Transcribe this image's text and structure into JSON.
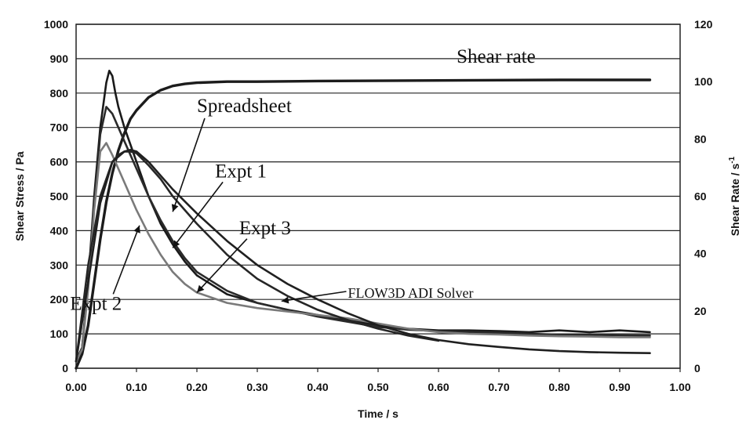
{
  "chart_data": {
    "type": "line",
    "title": "",
    "xlabel": "Time / s",
    "ylabel": "Shear Stress / Pa",
    "y2label": "Shear Rate / s-1",
    "xlim": [
      0,
      1.0
    ],
    "ylim": [
      0,
      1000
    ],
    "y2lim": [
      0,
      120
    ],
    "x_ticks": [
      "0.00",
      "0.10",
      "0.20",
      "0.30",
      "0.40",
      "0.50",
      "0.60",
      "0.70",
      "0.80",
      "0.90",
      "1.00"
    ],
    "y_ticks": [
      "0",
      "100",
      "200",
      "300",
      "400",
      "500",
      "600",
      "700",
      "800",
      "900",
      "1000"
    ],
    "y2_ticks": [
      "0",
      "20",
      "40",
      "60",
      "80",
      "100",
      "120"
    ],
    "grid": true,
    "series": [
      {
        "name": "Shear rate",
        "axis": "right",
        "color": "#1c1c1c",
        "width": 3.4,
        "x": [
          0,
          0.01,
          0.02,
          0.03,
          0.04,
          0.05,
          0.06,
          0.07,
          0.08,
          0.09,
          0.1,
          0.12,
          0.14,
          0.16,
          0.18,
          0.2,
          0.25,
          0.3,
          0.4,
          0.5,
          0.6,
          0.7,
          0.8,
          0.9,
          0.95
        ],
        "y": [
          0,
          5,
          15,
          30,
          45,
          58,
          68,
          76,
          82,
          87,
          90,
          94.5,
          97,
          98.5,
          99.2,
          99.6,
          100,
          100,
          100.2,
          100.3,
          100.4,
          100.5,
          100.6,
          100.6,
          100.6
        ]
      },
      {
        "name": "Expt 2",
        "axis": "left",
        "color": "#1a1a1a",
        "width": 2.6,
        "x": [
          0,
          0.01,
          0.02,
          0.03,
          0.04,
          0.05,
          0.055,
          0.06,
          0.065,
          0.07,
          0.08,
          0.09,
          0.1,
          0.12,
          0.14,
          0.16,
          0.18,
          0.2,
          0.25,
          0.3,
          0.35,
          0.4,
          0.45,
          0.5,
          0.55,
          0.6,
          0.65,
          0.7,
          0.75,
          0.8,
          0.85,
          0.9,
          0.95
        ],
        "y": [
          20,
          60,
          250,
          500,
          700,
          830,
          865,
          850,
          800,
          760,
          700,
          650,
          600,
          500,
          420,
          360,
          310,
          270,
          215,
          190,
          170,
          155,
          140,
          125,
          115,
          110,
          110,
          108,
          105,
          110,
          105,
          110,
          105
        ]
      },
      {
        "name": "Expt 1",
        "axis": "left",
        "color": "#2a2a2a",
        "width": 2.6,
        "x": [
          0,
          0.01,
          0.02,
          0.03,
          0.04,
          0.05,
          0.06,
          0.07,
          0.08,
          0.09,
          0.1,
          0.12,
          0.14,
          0.16,
          0.18,
          0.2,
          0.25,
          0.3,
          0.35,
          0.4,
          0.45,
          0.5,
          0.55,
          0.6,
          0.65,
          0.7,
          0.75,
          0.8,
          0.85,
          0.9,
          0.95
        ],
        "y": [
          20,
          60,
          240,
          480,
          680,
          760,
          740,
          700,
          660,
          620,
          580,
          500,
          430,
          370,
          320,
          280,
          225,
          190,
          170,
          150,
          135,
          120,
          112,
          108,
          105,
          103,
          100,
          98,
          97,
          96,
          95
        ]
      },
      {
        "name": "Expt 3",
        "axis": "left",
        "color": "#7a7a7a",
        "width": 2.6,
        "x": [
          0,
          0.01,
          0.02,
          0.03,
          0.04,
          0.05,
          0.06,
          0.07,
          0.08,
          0.09,
          0.1,
          0.12,
          0.14,
          0.16,
          0.18,
          0.2,
          0.25,
          0.3,
          0.35,
          0.4,
          0.45,
          0.5,
          0.55,
          0.6,
          0.65,
          0.7,
          0.75,
          0.8,
          0.85,
          0.9,
          0.95
        ],
        "y": [
          20,
          55,
          230,
          460,
          630,
          655,
          620,
          580,
          540,
          500,
          460,
          390,
          330,
          280,
          245,
          220,
          190,
          175,
          165,
          155,
          145,
          130,
          115,
          105,
          100,
          98,
          95,
          93,
          92,
          90,
          90
        ]
      },
      {
        "name": "Spreadsheet",
        "axis": "left",
        "color": "#262626",
        "width": 2.6,
        "x": [
          0,
          0.02,
          0.04,
          0.06,
          0.07,
          0.08,
          0.09,
          0.1,
          0.12,
          0.14,
          0.16,
          0.18,
          0.2,
          0.25,
          0.3,
          0.35,
          0.4,
          0.45,
          0.5,
          0.55,
          0.6
        ],
        "y": [
          20,
          300,
          500,
          600,
          620,
          630,
          630,
          625,
          590,
          550,
          500,
          460,
          420,
          330,
          260,
          210,
          170,
          140,
          115,
          95,
          80
        ]
      },
      {
        "name": "FLOW3D ADI Solver",
        "axis": "left",
        "color": "#202020",
        "width": 2.6,
        "x": [
          0,
          0.02,
          0.04,
          0.06,
          0.08,
          0.09,
          0.1,
          0.12,
          0.14,
          0.16,
          0.2,
          0.25,
          0.3,
          0.35,
          0.4,
          0.45,
          0.5,
          0.55,
          0.6,
          0.65,
          0.7,
          0.75,
          0.8,
          0.85,
          0.9,
          0.95
        ],
        "y": [
          20,
          250,
          480,
          600,
          630,
          635,
          630,
          600,
          560,
          520,
          450,
          370,
          300,
          245,
          200,
          160,
          125,
          100,
          82,
          70,
          62,
          55,
          50,
          47,
          45,
          44
        ]
      }
    ],
    "annotations": [
      {
        "name": "shear-rate-label",
        "text": "Shear rate",
        "at": [
          0.63,
          888
        ],
        "style": "big"
      },
      {
        "name": "spreadsheet-label",
        "text": "Spreadsheet",
        "at": [
          0.2,
          745
        ],
        "style": "big",
        "arrow_to": [
          0.16,
          455
        ]
      },
      {
        "name": "expt1-label",
        "text": "Expt 1",
        "at": [
          0.23,
          555
        ],
        "style": "big",
        "arrow_to": [
          0.16,
          350
        ]
      },
      {
        "name": "expt3-label",
        "text": "Expt 3",
        "at": [
          0.27,
          390
        ],
        "style": "big",
        "arrow_to": [
          0.2,
          220
        ]
      },
      {
        "name": "expt2-label",
        "text": "Expt 2",
        "at": [
          -0.01,
          170
        ],
        "style": "big",
        "arrow_to": [
          0.105,
          415
        ]
      },
      {
        "name": "flow3d-label",
        "text": "FLOW3D ADI Solver",
        "at": [
          0.45,
          205
        ],
        "style": "small",
        "arrow_to": [
          0.34,
          195
        ]
      }
    ]
  }
}
